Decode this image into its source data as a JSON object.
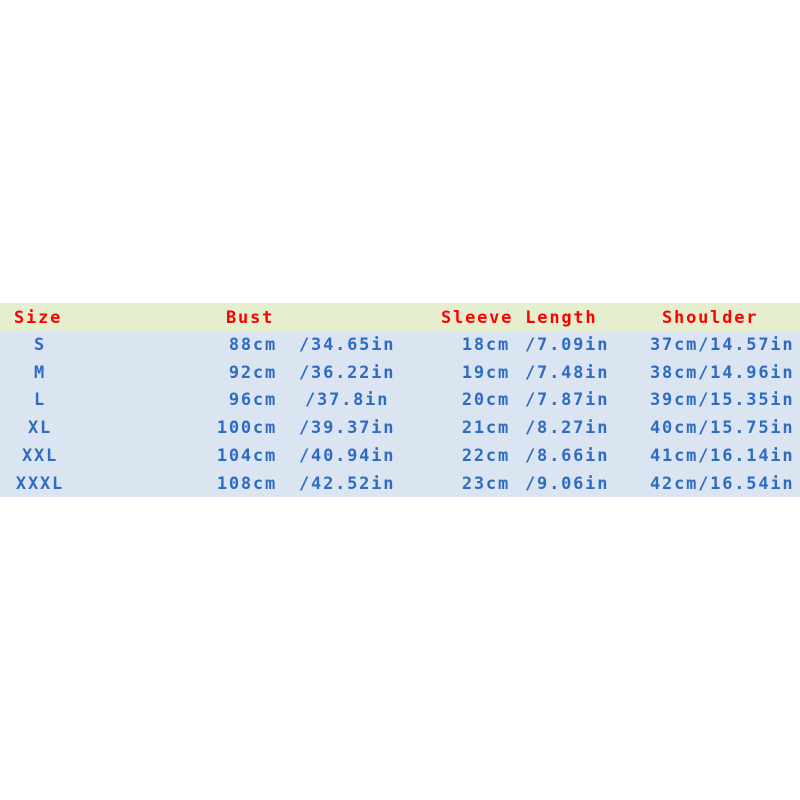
{
  "colors": {
    "header_bg": "#e5eecf",
    "body_bg": "#dbe5f1",
    "header_text": "#ff0000",
    "body_text": "#2e6cc4"
  },
  "headers": {
    "size": "Size",
    "bust": "Bust",
    "sleeve": "Sleeve Length",
    "shoulder": "Shoulder"
  },
  "rows": [
    {
      "size": "S",
      "bust_cm": "88cm",
      "bust_in": "/34.65in",
      "sleeve_cm": "18cm",
      "sleeve_in": "/7.09in",
      "shoulder": "37cm/14.57in"
    },
    {
      "size": "M",
      "bust_cm": "92cm",
      "bust_in": "/36.22in",
      "sleeve_cm": "19cm",
      "sleeve_in": "/7.48in",
      "shoulder": "38cm/14.96in"
    },
    {
      "size": "L",
      "bust_cm": "96cm",
      "bust_in": " /37.8in",
      "sleeve_cm": "20cm",
      "sleeve_in": "/7.87in",
      "shoulder": "39cm/15.35in"
    },
    {
      "size": "XL",
      "bust_cm": "100cm",
      "bust_in": "/39.37in",
      "sleeve_cm": "21cm",
      "sleeve_in": "/8.27in",
      "shoulder": "40cm/15.75in"
    },
    {
      "size": "XXL",
      "bust_cm": "104cm",
      "bust_in": "/40.94in",
      "sleeve_cm": "22cm",
      "sleeve_in": "/8.66in",
      "shoulder": "41cm/16.14in"
    },
    {
      "size": "XXXL",
      "bust_cm": "108cm",
      "bust_in": "/42.52in",
      "sleeve_cm": "23cm",
      "sleeve_in": "/9.06in",
      "shoulder": "42cm/16.54in"
    }
  ]
}
